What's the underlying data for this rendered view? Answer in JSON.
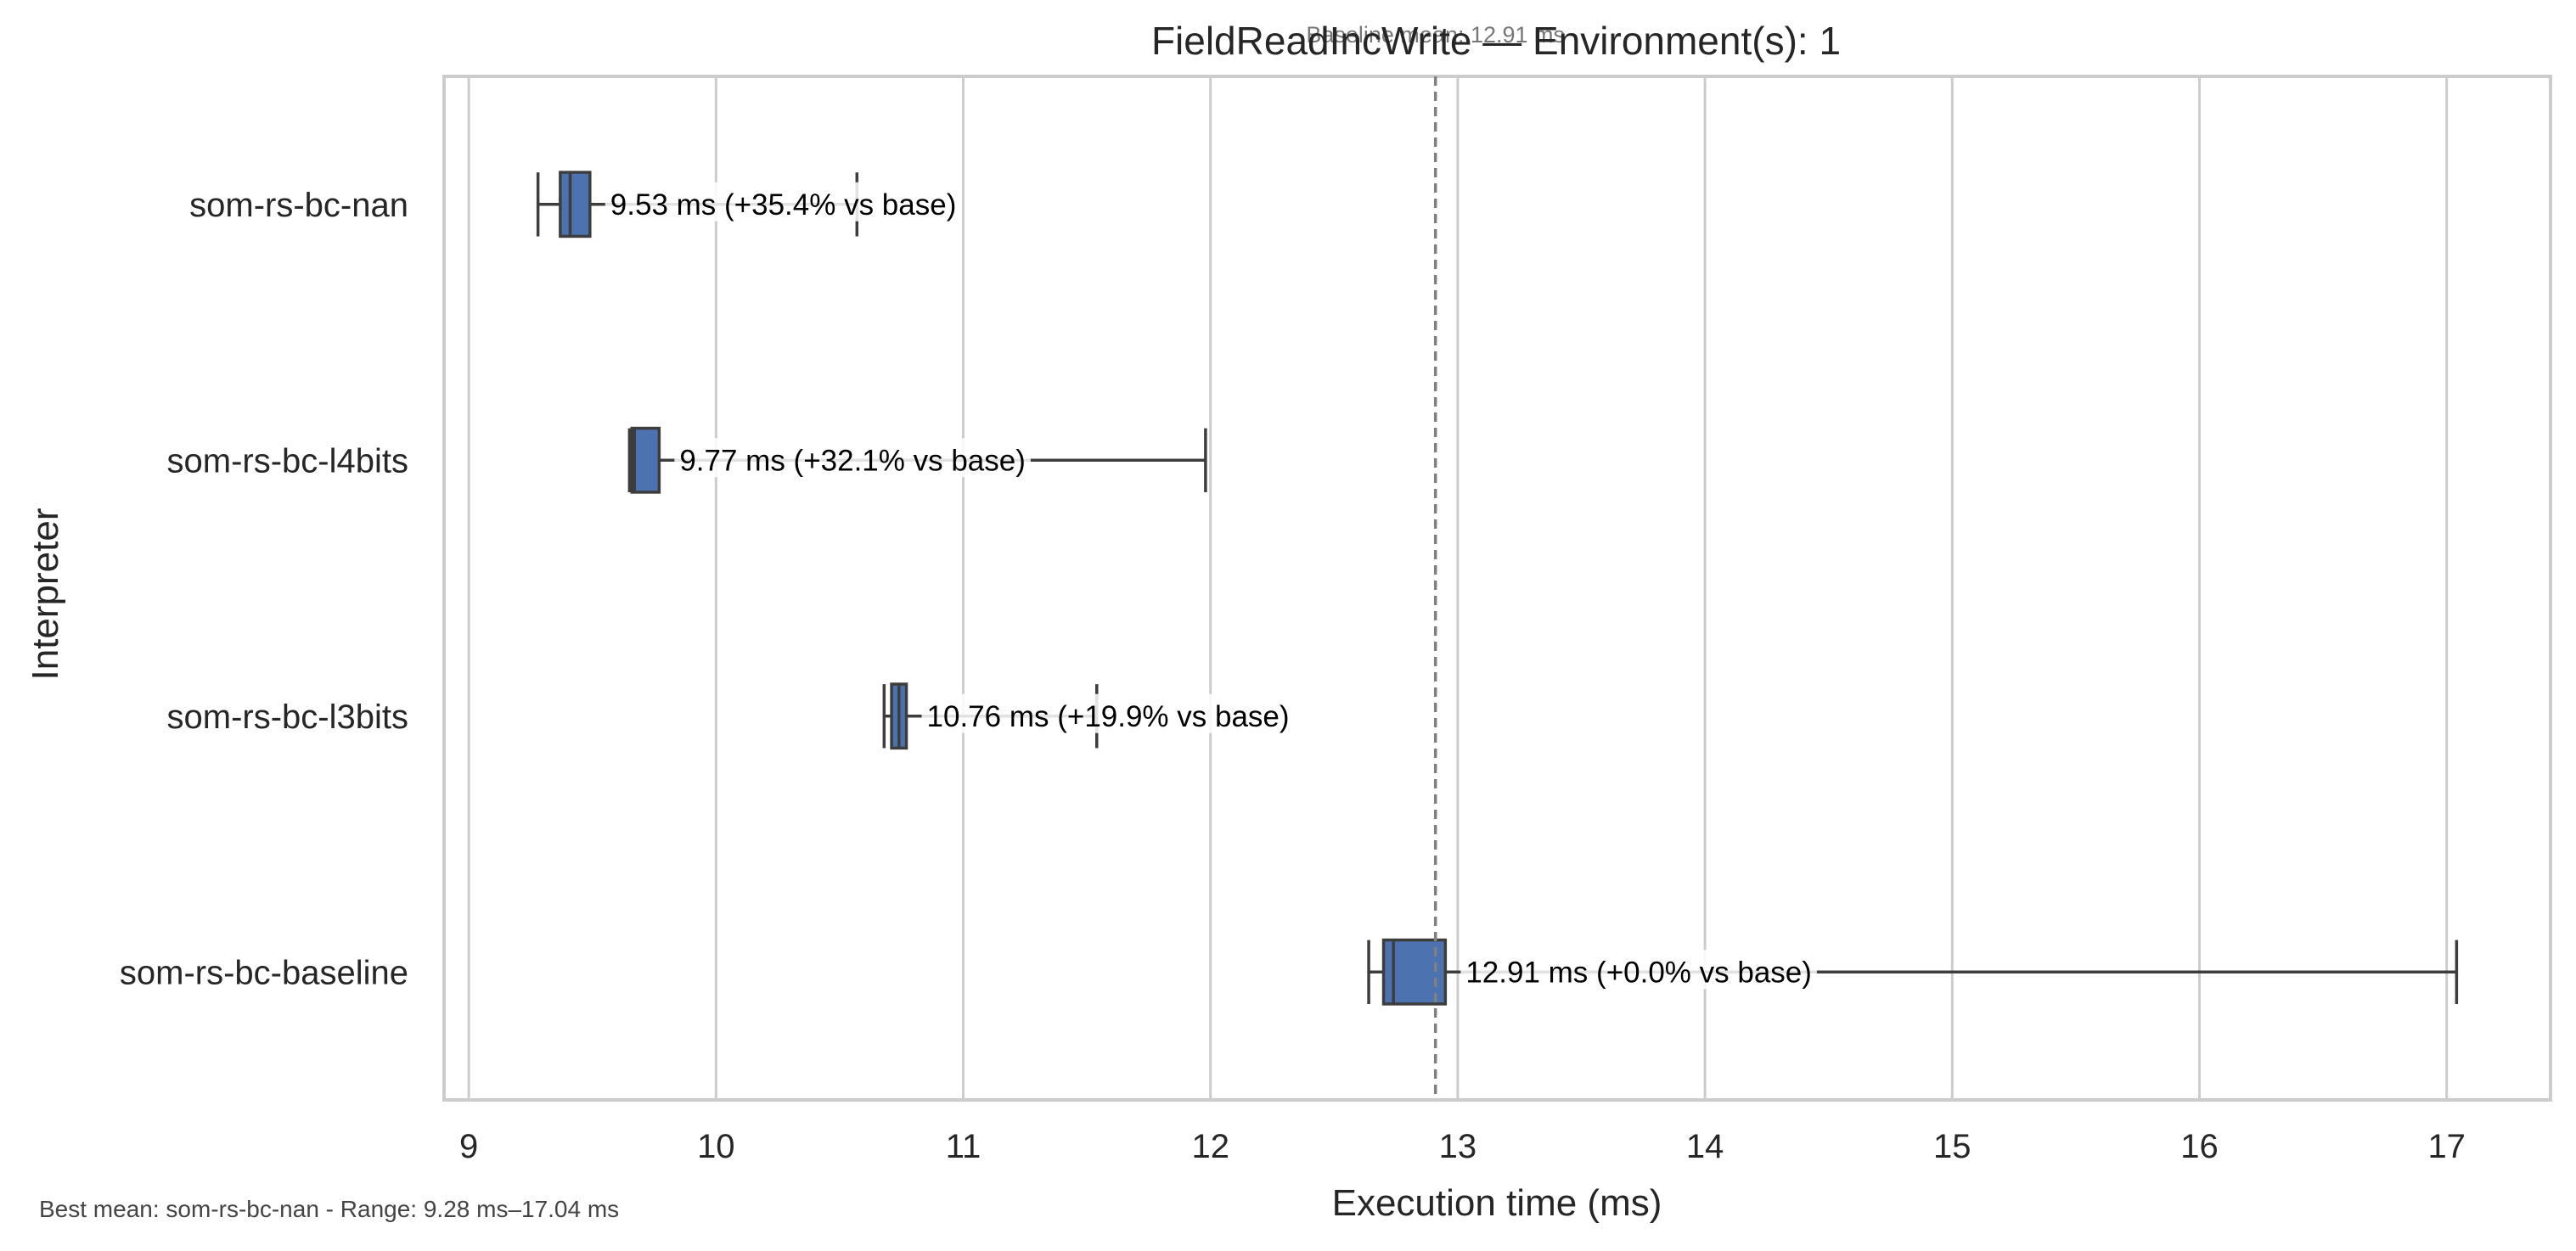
{
  "chart_data": {
    "type": "box",
    "title": "FieldReadIncWrite — Environment(s): 1",
    "xlabel": "Execution time (ms)",
    "ylabel": "Interpreter",
    "xlim": [
      8.9,
      17.42
    ],
    "xticks": [
      9,
      10,
      11,
      12,
      13,
      14,
      15,
      16,
      17
    ],
    "orientation": "horizontal",
    "grid": "vertical",
    "box_color": "#4c72b0",
    "categories": [
      "som-rs-bc-nan",
      "som-rs-bc-l4bits",
      "som-rs-bc-l3bits",
      "som-rs-bc-baseline"
    ],
    "series": [
      {
        "label": "som-rs-bc-nan",
        "whisker_low": 9.28,
        "q1": 9.37,
        "median": 9.41,
        "q3": 9.49,
        "whisker_high": 10.57,
        "annotation": "9.53 ms  (+35.4% vs base)"
      },
      {
        "label": "som-rs-bc-l4bits",
        "whisker_low": 9.65,
        "q1": 9.66,
        "median": 9.67,
        "q3": 9.77,
        "whisker_high": 11.98,
        "annotation": "9.77 ms  (+32.1% vs base)"
      },
      {
        "label": "som-rs-bc-l3bits",
        "whisker_low": 10.68,
        "q1": 10.71,
        "median": 10.74,
        "q3": 10.77,
        "whisker_high": 11.54,
        "annotation": "10.76 ms  (+19.9% vs base)"
      },
      {
        "label": "som-rs-bc-baseline",
        "whisker_low": 12.64,
        "q1": 12.7,
        "median": 12.74,
        "q3": 12.95,
        "whisker_high": 17.04,
        "annotation": "12.91 ms  (+0.0% vs base)"
      }
    ],
    "baseline": {
      "value": 12.91,
      "label": "Baseline mean: 12.91 ms"
    },
    "footer": "Best mean: som-rs-bc-nan - Range: 9.28 ms–17.04 ms"
  }
}
